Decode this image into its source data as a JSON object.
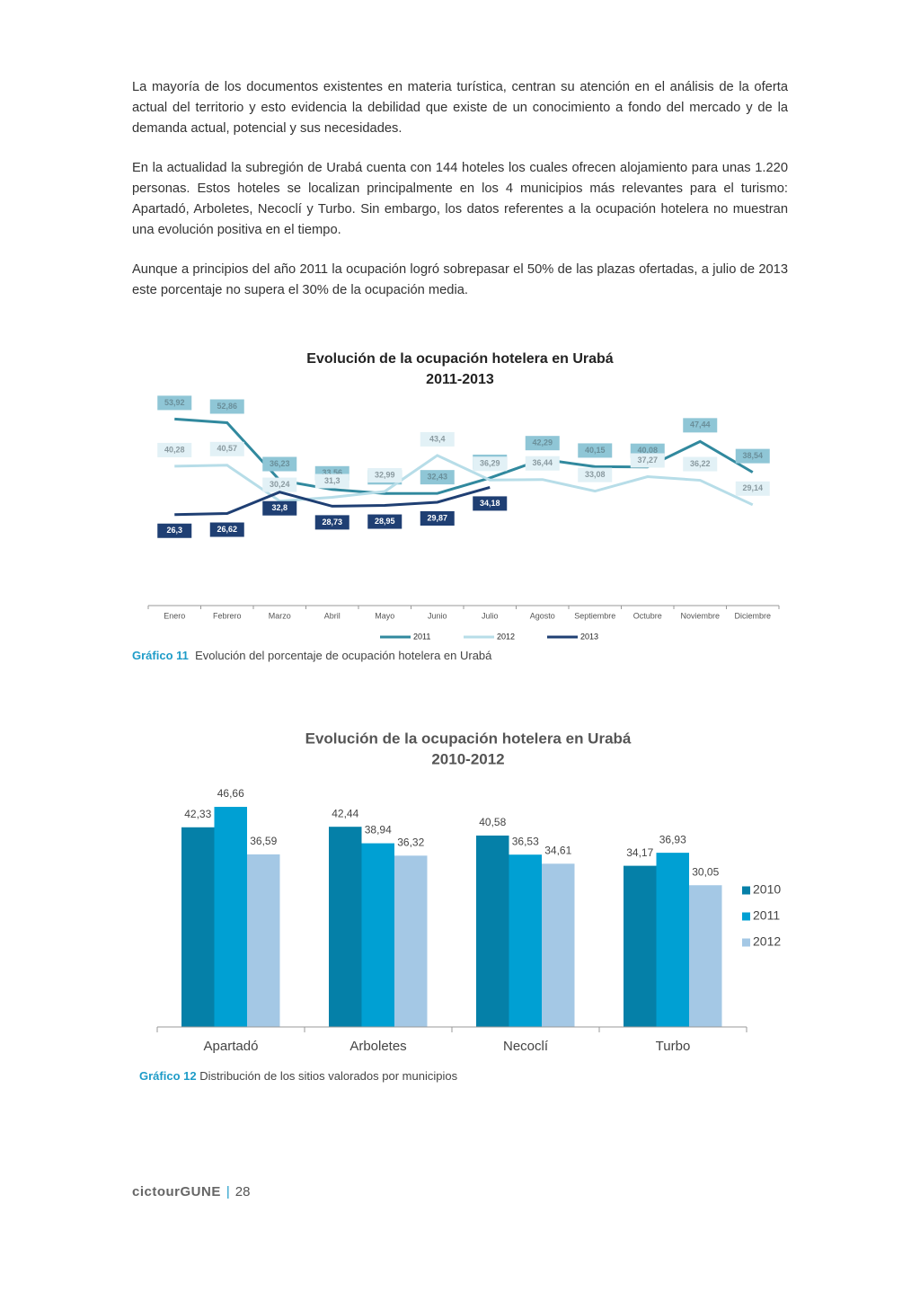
{
  "paragraphs": [
    "La mayoría de los documentos existentes en materia turística, centran su atención en el análisis de la oferta actual del territorio y esto evidencia la debilidad que existe de un conocimiento a fondo del mercado y de la demanda actual,  potencial y sus necesidades.",
    "En la actualidad la subregión de Urabá cuenta con 144 hoteles los cuales ofrecen alojamiento para unas 1.220 personas. Estos hoteles se localizan principalmente en los 4 municipios más relevantes para el turismo: Apartadó, Arboletes, Necoclí y Turbo. Sin embargo, los datos referentes a la ocupación hotelera no muestran una evolución positiva en el tiempo.",
    "Aunque a principios del año 2011 la ocupación logró sobrepasar el 50% de las plazas ofertadas, a julio de 2013 este porcentaje no supera el 30% de la ocupación media."
  ],
  "chart_data": [
    {
      "type": "line",
      "title": "Evolución de la ocupación hotelera en Urabá",
      "subtitle": "2011-2013",
      "categories": [
        "Enero",
        "Febrero",
        "Marzo",
        "Abril",
        "Mayo",
        "Junio",
        "Julio",
        "Agosto",
        "Septiembre",
        "Octubre",
        "Noviembre",
        "Diciembre"
      ],
      "ylim": [
        0,
        60
      ],
      "legend": "bottom",
      "series": [
        {
          "name": "2011",
          "color": "#31899e",
          "values": [
            53.92,
            52.86,
            36.23,
            33.56,
            32.39,
            32.43,
            36.89,
            42.29,
            40.15,
            40.08,
            47.44,
            38.54
          ],
          "value_labels": [
            "53,92",
            "52,86",
            "36,23",
            "33,56",
            "32,39",
            "32,43",
            "36,89",
            "42,29",
            "40,15",
            "40,08",
            "47,44",
            "38,54"
          ]
        },
        {
          "name": "2012",
          "color": "#b7dde8",
          "values": [
            40.28,
            40.57,
            30.24,
            31.3,
            32.99,
            43.4,
            36.29,
            36.44,
            33.08,
            37.27,
            36.22,
            29.14
          ],
          "value_labels": [
            "40,28",
            "40,57",
            "30,24",
            "31,3",
            "32,99",
            "43,4",
            "36,29",
            "36,44",
            "33,08",
            "37,27",
            "36,22",
            "29,14"
          ]
        },
        {
          "name": "2013",
          "color": "#1f3f73",
          "values": [
            26.3,
            26.62,
            32.8,
            28.73,
            28.95,
            29.87,
            34.18,
            null,
            null,
            null,
            null,
            null
          ],
          "value_labels": [
            "26,3",
            "26,62",
            "32,8",
            "28,73",
            "28,95",
            "29,87",
            "34,18",
            null,
            null,
            null,
            null,
            null
          ]
        }
      ]
    },
    {
      "type": "bar",
      "title": "Evolución de la ocupación hotelera en Urabá",
      "subtitle": "2010-2012",
      "categories": [
        "Apartadó",
        "Arboletes",
        "Necoclí",
        "Turbo"
      ],
      "ylim": [
        0,
        50
      ],
      "legend": "right",
      "series": [
        {
          "name": "2010",
          "color": "#0580a8",
          "values": [
            42.33,
            42.44,
            40.58,
            34.17
          ],
          "value_labels": [
            "42,33",
            "42,44",
            "40,58",
            "34,17"
          ]
        },
        {
          "name": "2011",
          "color": "#00a0d3",
          "values": [
            46.66,
            38.94,
            36.53,
            36.93
          ],
          "value_labels": [
            "46,66",
            "38,94",
            "36,53",
            "36,93"
          ]
        },
        {
          "name": "2012",
          "color": "#a4c8e5",
          "values": [
            36.59,
            36.32,
            34.61,
            30.05
          ],
          "value_labels": [
            "36,59",
            "36,32",
            "34,61",
            "30,05"
          ]
        }
      ]
    }
  ],
  "captions": [
    {
      "label": "Gráfico 11",
      "text": "Evolución del porcentaje de ocupación hotelera en Urabá"
    },
    {
      "label": "Gráfico 12",
      "text": "Distribución de los sitios valorados por municipios"
    }
  ],
  "footer": {
    "brand": "cictourGUNE",
    "page": "28"
  }
}
